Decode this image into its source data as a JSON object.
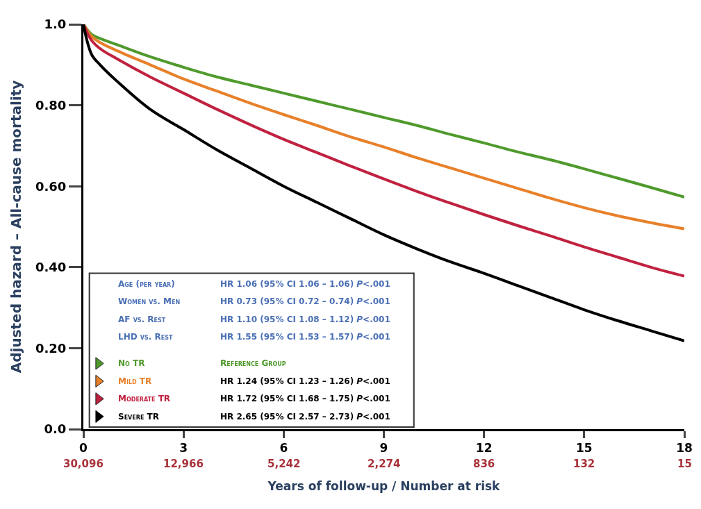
{
  "chart_data": {
    "type": "line",
    "xlabel": "Years of follow-up / Number at risk",
    "ylabel": "Adjusted hazard – All-cause mortality",
    "xlim": [
      0,
      18
    ],
    "xticks": [
      0,
      3,
      6,
      9,
      12,
      15,
      18
    ],
    "ylim": [
      0,
      1
    ],
    "yticks": [
      {
        "value": 0,
        "label": "0.0"
      },
      {
        "value": 0.2,
        "label": "0.20"
      },
      {
        "value": 0.4,
        "label": "0.40"
      },
      {
        "value": 0.6,
        "label": "0.60"
      },
      {
        "value": 0.8,
        "label": "0.80"
      },
      {
        "value": 1,
        "label": "1.0"
      }
    ],
    "x": [
      0,
      0.25,
      0.5,
      1,
      2,
      3,
      4,
      5,
      6,
      7,
      8,
      9,
      10,
      11,
      12,
      13,
      14,
      15,
      16,
      17,
      18
    ],
    "series": [
      {
        "name": "No TR",
        "color": "#4f9a2c",
        "values": [
          1,
          0.975,
          0.965,
          0.95,
          0.92,
          0.894,
          0.87,
          0.85,
          0.83,
          0.81,
          0.79,
          0.77,
          0.75,
          0.728,
          0.707,
          0.685,
          0.665,
          0.643,
          0.62,
          0.597,
          0.573
        ]
      },
      {
        "name": "Mild TR",
        "color": "#e8802a",
        "values": [
          1,
          0.97,
          0.955,
          0.935,
          0.9,
          0.865,
          0.835,
          0.805,
          0.777,
          0.75,
          0.722,
          0.697,
          0.67,
          0.645,
          0.62,
          0.595,
          0.57,
          0.547,
          0.527,
          0.51,
          0.495
        ]
      },
      {
        "name": "Moderate TR",
        "color": "#c0213f",
        "values": [
          1,
          0.96,
          0.94,
          0.915,
          0.87,
          0.83,
          0.79,
          0.752,
          0.716,
          0.683,
          0.65,
          0.618,
          0.587,
          0.558,
          0.53,
          0.503,
          0.477,
          0.45,
          0.425,
          0.4,
          0.378
        ]
      },
      {
        "name": "Severe TR",
        "color": "#000000",
        "values": [
          1,
          0.925,
          0.9,
          0.86,
          0.79,
          0.74,
          0.69,
          0.645,
          0.6,
          0.56,
          0.52,
          0.48,
          0.445,
          0.413,
          0.385,
          0.355,
          0.325,
          0.295,
          0.268,
          0.243,
          0.218
        ]
      }
    ],
    "annotations": [
      "Age (per year)",
      "HR 1.06 (95% CI 1.06 – 1.06) P<.001",
      "Women vs. Men",
      "HR 0.73 (95% CI 0.72 – 0.74) P<.001",
      "AF vs. Rest",
      "HR 1.10 (95% CI 1.08 – 1.12) P<.001",
      "LHD vs. Rest",
      "HR 1.55 (95% CI 1.53 – 1.57) P<.001",
      "Reference Group",
      "HR 1.24 (95% CI 1.23 – 1.26) P<.001",
      "HR 1.72 (95% CI 1.68 – 1.75) P<.001",
      "HR 2.65 (95% CI 2.57 – 2.73) P<.001",
      "30,096",
      "12,966",
      "5,242",
      "2,274",
      "836",
      "132",
      "15"
    ],
    "legend": "bottom left",
    "grid": false,
    "marker": "none",
    "line_style": "solid"
  }
}
